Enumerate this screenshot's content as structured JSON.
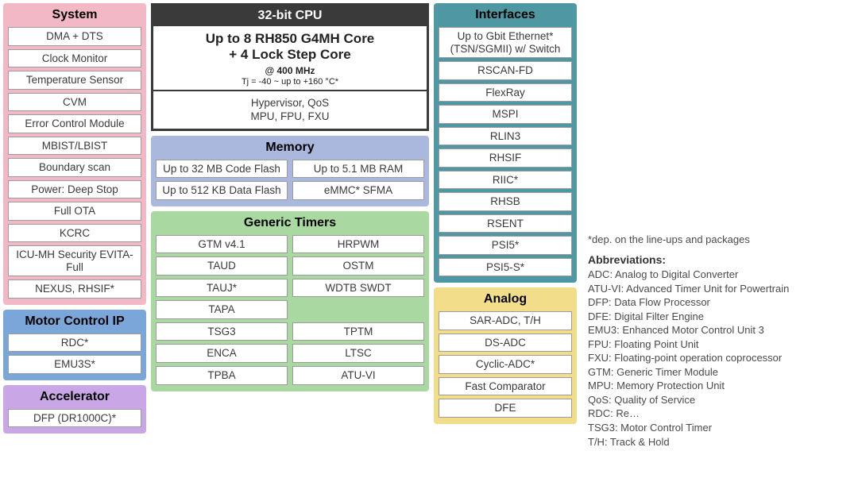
{
  "colors": {
    "system_bg": "#f2b8c6",
    "motor_bg": "#7aa6d9",
    "accel_bg": "#c9a7e6",
    "memory_bg": "#a9b8dc",
    "timers_bg": "#a9d9a0",
    "interfaces_bg": "#4f97a3",
    "analog_bg": "#f2dd8a",
    "cpu_border": "#3a3a3a",
    "cell_border": "#9c9c9c",
    "cell_bg": "#ffffff",
    "text": "#3a3a3a"
  },
  "cpu": {
    "header": "32-bit CPU",
    "line1": "Up to 8 RH850 G4MH Core",
    "line2": "+ 4 Lock Step Core",
    "freq": "@ 400 MHz",
    "temp": "Tj = -40 ~  up to +160 °C*",
    "foot1": "Hypervisor, QoS",
    "foot2": "MPU, FPU, FXU"
  },
  "system": {
    "title": "System",
    "items": [
      "DMA + DTS",
      "Clock Monitor",
      "Temperature Sensor",
      "CVM",
      "Error Control Module",
      "MBIST/LBIST",
      "Boundary scan",
      "Power: Deep Stop",
      "Full OTA",
      "KCRC",
      "ICU-MH Security EVITA-Full",
      "NEXUS, RHSIF*"
    ]
  },
  "motor": {
    "title": "Motor Control IP",
    "items": [
      "RDC*",
      "EMU3S*"
    ]
  },
  "accelerator": {
    "title": "Accelerator",
    "items": [
      "DFP (DR1000C)*"
    ]
  },
  "memory": {
    "title": "Memory",
    "cells": [
      "Up to 32 MB Code Flash",
      "Up to 5.1 MB RAM",
      "Up to 512 KB Data Flash",
      "eMMC* SFMA"
    ]
  },
  "timers": {
    "title": "Generic Timers",
    "cells": [
      "GTM v4.1",
      "HRPWM",
      "TAUD",
      "OSTM",
      "TAUJ*",
      "WDTB SWDT",
      "TAPA",
      "",
      "TSG3",
      "TPTM",
      "ENCA",
      "LTSC",
      "TPBA",
      "ATU-VI"
    ]
  },
  "interfaces": {
    "title": "Interfaces",
    "items": [
      "Up to Gbit Ethernet* (TSN/SGMII) w/ Switch",
      "RSCAN-FD",
      "FlexRay",
      "MSPI",
      "RLIN3",
      "RHSIF",
      "RIIC*",
      "RHSB",
      "RSENT",
      "PSI5*",
      "PSI5-S*"
    ]
  },
  "analog": {
    "title": "Analog",
    "items": [
      "SAR-ADC, T/H",
      "DS-ADC",
      "Cyclic-ADC*",
      "Fast Comparator",
      "DFE"
    ]
  },
  "notes": {
    "dep": "*dep. on the line-ups and packages",
    "header": "Abbreviations:",
    "lines": [
      "ADC: Analog to Digital Converter",
      "ATU-VI: Advanced Timer Unit for Powertrain",
      "DFP: Data Flow Processor",
      "DFE: Digital Filter Engine",
      "EMU3: Enhanced Motor Control Unit 3",
      "FPU: Floating Point Unit",
      "FXU: Floating-point operation coprocessor",
      "GTM: Generic Timer Module",
      "MPU: Memory Protection Unit",
      "QoS: Quality of Service",
      "RDC: Re…",
      "TSG3: Motor Control Timer",
      "T/H: Track & Hold"
    ]
  }
}
